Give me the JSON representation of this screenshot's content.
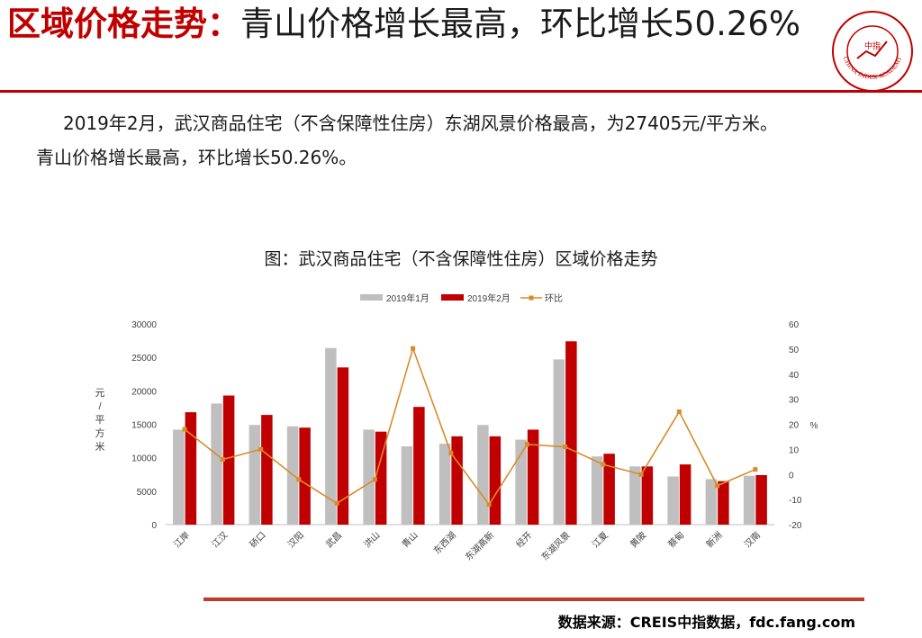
{
  "header": {
    "title_highlight": "区域价格走势：",
    "title_rest": "青山价格增长最高，环比增长50.26%",
    "logo_text": "中指",
    "logo_ring_text": "CHINA INDEX ACADEMY"
  },
  "paragraph": {
    "line1": "2019年2月，武汉商品住宅（不含保障性住房）东湖风景价格最高，为27405元/平方米。",
    "line2": "青山价格增长最高，环比增长50.26%。"
  },
  "colors": {
    "accent": "#c00000",
    "jan": "#bfbfbf",
    "feb": "#c00000",
    "mom": "#d98b2a",
    "rule": "#c0392b"
  },
  "chart_data": {
    "type": "bar",
    "title": "图：武汉商品住宅（不含保障性住房）区域价格走势",
    "ylabel_left": "元/平方米",
    "ylabel_right": "%",
    "ylim_left": [
      0,
      30000
    ],
    "yticks_left": [
      0,
      5000,
      10000,
      15000,
      20000,
      25000,
      30000
    ],
    "ylim_right": [
      -20,
      60
    ],
    "yticks_right": [
      -20,
      -10,
      0,
      10,
      20,
      30,
      40,
      50,
      60
    ],
    "legend_position": "top-center",
    "categories": [
      "江岸",
      "江汉",
      "硚口",
      "汉阳",
      "武昌",
      "洪山",
      "青山",
      "东西湖",
      "东湖高新",
      "经开",
      "东湖风景",
      "江夏",
      "黄陂",
      "蔡甸",
      "新洲",
      "汉南"
    ],
    "series": [
      {
        "name": "2019年1月",
        "kind": "bar",
        "axis": "left",
        "values": [
          14200,
          18100,
          14900,
          14700,
          26400,
          14200,
          11700,
          12100,
          14900,
          12700,
          24700,
          10200,
          8700,
          7200,
          6800,
          7300
        ]
      },
      {
        "name": "2019年2月",
        "kind": "bar",
        "axis": "left",
        "values": [
          16800,
          19300,
          16400,
          14500,
          23500,
          13900,
          17600,
          13200,
          13200,
          14200,
          27405,
          10600,
          8700,
          9000,
          6500,
          7400
        ]
      },
      {
        "name": "环比",
        "kind": "line",
        "axis": "right",
        "values": [
          18,
          6,
          10,
          -2,
          -11.5,
          -2,
          50.26,
          8.5,
          -12,
          12,
          11,
          4,
          0,
          25,
          -4.5,
          2
        ]
      }
    ]
  },
  "footer": {
    "source": "数据来源：CREIS中指数据，fdc.fang.com"
  }
}
